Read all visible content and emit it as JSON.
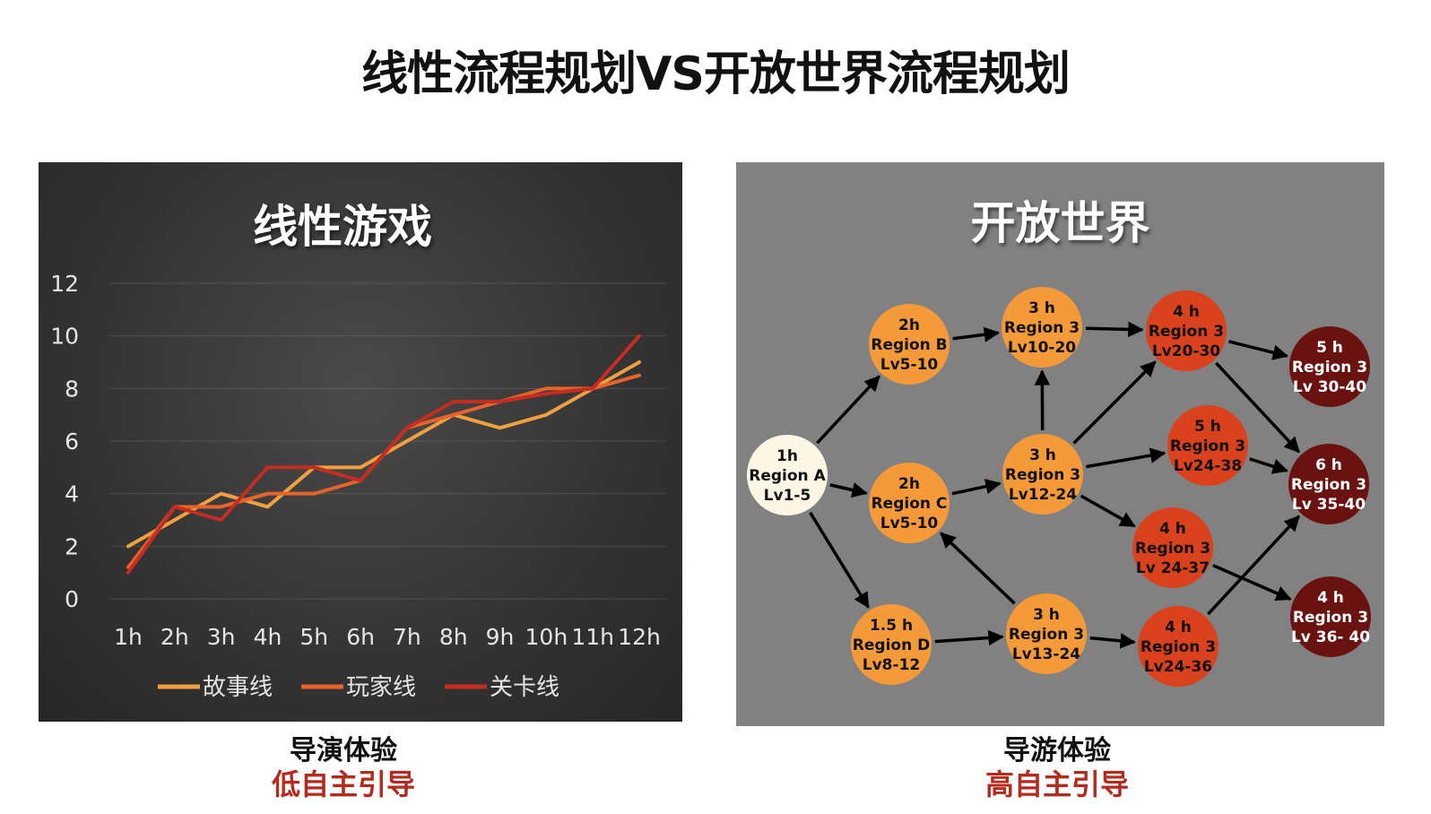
{
  "title": "线性流程规划VS开放世界流程规划",
  "colors": {
    "story": "#f0a040",
    "player": "#e8622b",
    "level": "#c42d20",
    "caption_accent": "#b52a1c"
  },
  "chart_data": [
    {
      "type": "line",
      "title": "线性游戏",
      "categories": [
        "1h",
        "2h",
        "3h",
        "4h",
        "5h",
        "6h",
        "7h",
        "8h",
        "9h",
        "10h",
        "11h",
        "12h"
      ],
      "ylim": [
        0,
        12
      ],
      "yticks": [
        0,
        2,
        4,
        6,
        8,
        10,
        12
      ],
      "grid": true,
      "legend_position": "bottom",
      "series": [
        {
          "name": "故事线",
          "color": "#f0a040",
          "values": [
            2,
            3,
            4,
            3.5,
            5,
            5,
            6,
            7,
            6.5,
            7,
            8,
            9
          ]
        },
        {
          "name": "玩家线",
          "color": "#e8622b",
          "values": [
            1.2,
            3.5,
            3.5,
            4,
            4,
            4.5,
            6.5,
            7,
            7.5,
            8,
            8,
            8.5
          ]
        },
        {
          "name": "关卡线",
          "color": "#c42d20",
          "values": [
            1,
            3.5,
            3,
            5,
            5,
            4.5,
            6.5,
            7.5,
            7.5,
            7.8,
            8,
            10
          ]
        }
      ]
    },
    {
      "type": "diagram",
      "title": "开放世界",
      "nodes": [
        {
          "id": "A",
          "lines": [
            "1h",
            "Region A",
            "Lv1-5"
          ],
          "fill": "#fdf6e4",
          "text": "#111111"
        },
        {
          "id": "B",
          "lines": [
            "2h",
            "Region B",
            "Lv5-10"
          ],
          "fill": "#f59a38",
          "text": "#111111"
        },
        {
          "id": "C",
          "lines": [
            "2h",
            "Region C",
            "Lv5-10"
          ],
          "fill": "#f59a38",
          "text": "#111111"
        },
        {
          "id": "D",
          "lines": [
            "1.5 h",
            "Region D",
            "Lv8-12"
          ],
          "fill": "#f59a38",
          "text": "#111111"
        },
        {
          "id": "E",
          "lines": [
            "3 h",
            "Region 3",
            "Lv10-20"
          ],
          "fill": "#f59a38",
          "text": "#111111"
        },
        {
          "id": "F",
          "lines": [
            "3 h",
            "Region 3",
            "Lv12-24"
          ],
          "fill": "#f59a38",
          "text": "#111111"
        },
        {
          "id": "G",
          "lines": [
            "3 h",
            "Region 3",
            "Lv13-24"
          ],
          "fill": "#f59a38",
          "text": "#111111"
        },
        {
          "id": "H",
          "lines": [
            "4 h",
            "Region 3",
            "Lv20-30"
          ],
          "fill": "#d9421d",
          "text": "#111111"
        },
        {
          "id": "I",
          "lines": [
            "5 h",
            "Region 3",
            "Lv24-38"
          ],
          "fill": "#d9421d",
          "text": "#111111"
        },
        {
          "id": "J",
          "lines": [
            "4 h",
            "Region 3",
            "Lv 24-37"
          ],
          "fill": "#d9421d",
          "text": "#111111"
        },
        {
          "id": "K",
          "lines": [
            "4 h",
            "Region 3",
            "Lv24-36"
          ],
          "fill": "#d9421d",
          "text": "#111111"
        },
        {
          "id": "L",
          "lines": [
            "5 h",
            "Region 3",
            "Lv 30-40"
          ],
          "fill": "#6a120f",
          "text": "#ffffff"
        },
        {
          "id": "M",
          "lines": [
            "6 h",
            "Region 3",
            "Lv 35-40"
          ],
          "fill": "#6a120f",
          "text": "#ffffff"
        },
        {
          "id": "N",
          "lines": [
            "4 h",
            "Region 3",
            "Lv 36- 40"
          ],
          "fill": "#6a120f",
          "text": "#ffffff"
        }
      ],
      "edges": [
        [
          "A",
          "B"
        ],
        [
          "A",
          "C"
        ],
        [
          "A",
          "D"
        ],
        [
          "B",
          "E"
        ],
        [
          "C",
          "F"
        ],
        [
          "F",
          "E"
        ],
        [
          "D",
          "G"
        ],
        [
          "G",
          "C"
        ],
        [
          "E",
          "H"
        ],
        [
          "F",
          "H"
        ],
        [
          "F",
          "I"
        ],
        [
          "F",
          "J"
        ],
        [
          "G",
          "K"
        ],
        [
          "H",
          "L"
        ],
        [
          "H",
          "M"
        ],
        [
          "I",
          "M"
        ],
        [
          "J",
          "N"
        ],
        [
          "K",
          "M"
        ]
      ]
    }
  ],
  "captions": {
    "left_line1": "导演体验",
    "left_line2": "低自主引导",
    "right_line1": "导游体验",
    "right_line2": "高自主引导"
  }
}
